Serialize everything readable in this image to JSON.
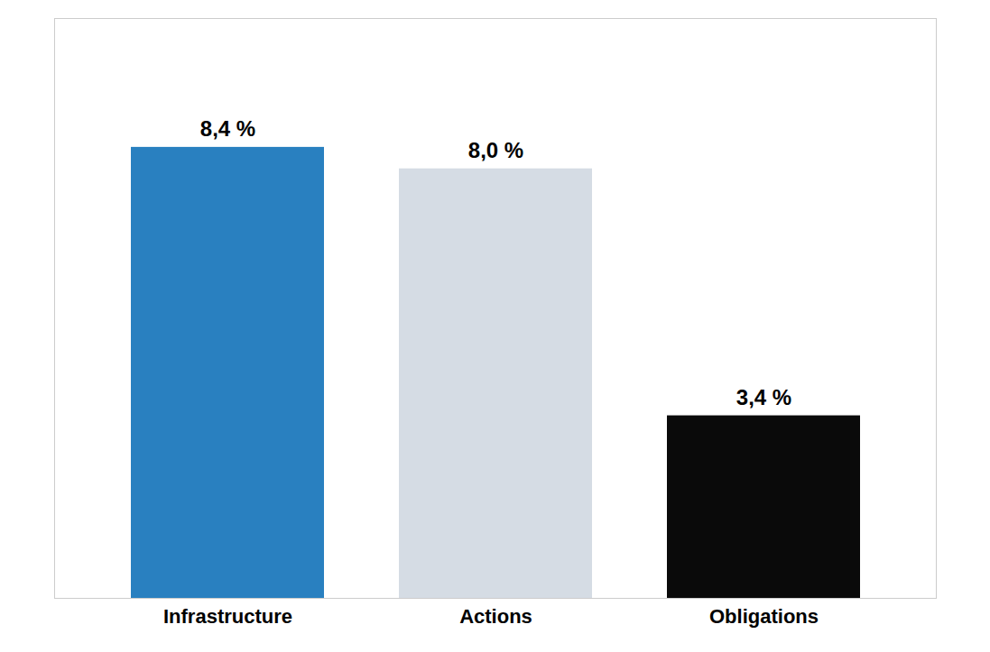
{
  "chart_data": {
    "type": "bar",
    "categories": [
      "Infrastructure",
      "Actions",
      "Obligations"
    ],
    "values": [
      8.4,
      8.0,
      3.4
    ],
    "value_labels": [
      "8,4 %",
      "8,0 %",
      "3,4 %"
    ],
    "colors": [
      "#2980C0",
      "#D5DCE4",
      "#0A0A0A"
    ],
    "ylim": [
      0,
      10.8
    ],
    "data_labels": true,
    "tick_labels": "x",
    "grid": false
  }
}
